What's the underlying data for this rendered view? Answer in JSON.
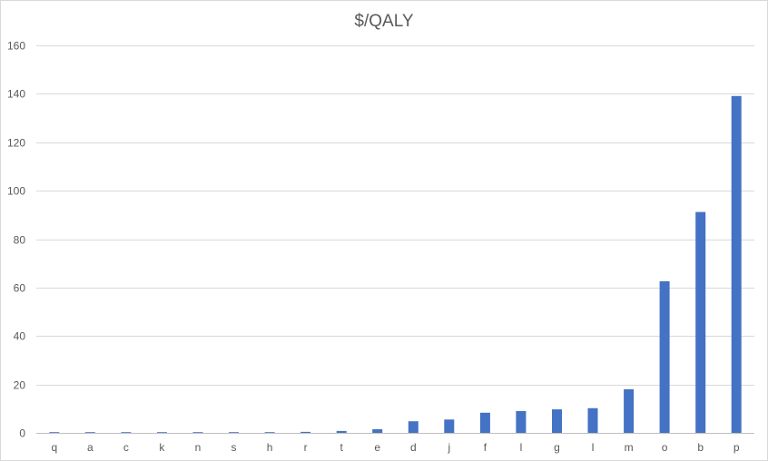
{
  "chart_data": {
    "type": "bar",
    "title": "$/QALY",
    "xlabel": "",
    "ylabel": "",
    "ylim": [
      0,
      160
    ],
    "yticks": [
      0,
      20,
      40,
      60,
      80,
      100,
      120,
      140,
      160
    ],
    "grid": true,
    "legend": "none",
    "bar_color": "#4472c4",
    "categories": [
      "q",
      "a",
      "c",
      "k",
      "n",
      "s",
      "h",
      "r",
      "t",
      "e",
      "d",
      "j",
      "f",
      "l",
      "g",
      "I",
      "m",
      "o",
      "b",
      "p"
    ],
    "values": [
      0.3,
      0.3,
      0.3,
      0.3,
      0.3,
      0.3,
      0.3,
      0.4,
      0.8,
      1.5,
      4.8,
      5.5,
      8.3,
      9.0,
      9.7,
      10.2,
      18.0,
      62.6,
      91.2,
      139.1
    ]
  }
}
